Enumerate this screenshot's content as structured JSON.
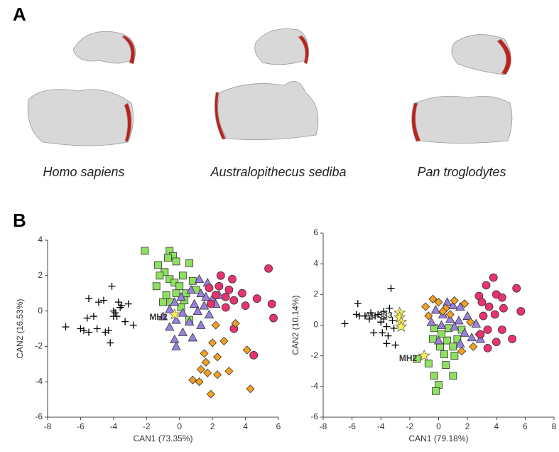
{
  "figure": {
    "panel_labels": [
      "A",
      "B"
    ],
    "species": [
      "Homo sapiens",
      "Australopithecus sediba",
      "Pan troglodytes"
    ]
  },
  "chart_data": [
    {
      "type": "scatter",
      "xlabel": "CAN1 (73.35%)",
      "ylabel": "CAN2 (16.53%)",
      "xlim": [
        -8,
        6
      ],
      "ylim": [
        -6,
        4
      ],
      "xticks": [
        -8,
        -6,
        -4,
        -2,
        0,
        2,
        4,
        6
      ],
      "yticks": [
        -6,
        -4,
        -2,
        0,
        2,
        4
      ],
      "series": [
        {
          "marker": "plus",
          "color": "#000000",
          "x": [
            -6.9,
            -6,
            -5.8,
            -5.6,
            -5.5,
            -5,
            -4.9,
            -4.6,
            -4.3,
            -4.1,
            -4,
            -3.9,
            -3.8,
            -3.6,
            -3.5,
            -3.3,
            -3.1,
            -2.8,
            -4.2,
            -4.5,
            -5.2,
            -3.7,
            -4,
            -5.5
          ],
          "y": [
            -0.9,
            -1,
            -1.1,
            -0.4,
            0.7,
            -1,
            0.5,
            0.6,
            -1.1,
            1.4,
            0,
            -0.1,
            -0.3,
            0.2,
            0.3,
            -0.6,
            0.4,
            -0.8,
            -1.8,
            -1.2,
            -0.3,
            0.5,
            -0.3,
            -1.2
          ]
        },
        {
          "marker": "square",
          "color": "#8fe060",
          "x": [
            -2.1,
            -0.6,
            -0.4,
            -0.7,
            -0.2,
            -1.3,
            -0.9,
            -1.2,
            0.6,
            0.2,
            0.8,
            -0.6,
            -0.3,
            -1.4,
            0,
            0.4,
            -0.8,
            -1,
            -0.5,
            0.1,
            0.6,
            -0.2,
            1,
            0.3
          ],
          "y": [
            3.4,
            3.4,
            3.1,
            3,
            2.8,
            2.6,
            2.2,
            2,
            2.7,
            2,
            1.7,
            1.8,
            1.6,
            1.4,
            1.4,
            1,
            0.9,
            0.5,
            0.5,
            0.2,
            -0.5,
            1,
            1.2,
            0.6
          ]
        },
        {
          "marker": "triangle",
          "color": "#9a80e0",
          "x": [
            1.2,
            1.7,
            0.7,
            1.3,
            2,
            -0.3,
            0.1,
            0.9,
            1.5,
            2.2,
            -0.6,
            0.2,
            1.1,
            1.8,
            -1,
            -0.2,
            0.6,
            1.3,
            -0.6,
            0.2,
            -0.3,
            -0.2,
            0.8,
            2.4,
            1.6
          ],
          "y": [
            1.8,
            1.6,
            1.2,
            1,
            0.7,
            0.5,
            0.8,
            0.4,
            0.3,
            0.4,
            0.1,
            -0.1,
            0,
            -0.2,
            -0.3,
            -0.5,
            -0.6,
            -0.8,
            -0.9,
            -1.2,
            -1.6,
            -2,
            -1.5,
            0.9,
            0.8
          ]
        },
        {
          "marker": "circle",
          "color": "#e8336e",
          "x": [
            2.5,
            3.2,
            1.8,
            2.2,
            2.8,
            3.3,
            3.8,
            4,
            4.7,
            5.4,
            5.6,
            5.7,
            2.8,
            1.9,
            4.5,
            3.3,
            2.4,
            3
          ],
          "y": [
            2,
            1.8,
            1.3,
            0.9,
            0.8,
            0.6,
            1,
            0.3,
            0.7,
            2.4,
            0.4,
            -0.4,
            0.2,
            0.4,
            -2.5,
            -1,
            1.4,
            1.2
          ]
        },
        {
          "marker": "diamond",
          "color": "#f4a020",
          "x": [
            2.2,
            2,
            2.7,
            3.4,
            2.3,
            1.5,
            4.1,
            3,
            1.3,
            1.7,
            2.3,
            0.8,
            1.2,
            1.9,
            4.3,
            1.6
          ],
          "y": [
            -0.8,
            -1.8,
            -1.7,
            -0.7,
            -2.6,
            -2.4,
            -2.2,
            -3.4,
            -3.3,
            -3.5,
            -3.6,
            -3.9,
            -4,
            -4.7,
            -4.4,
            -2.9
          ]
        },
        {
          "marker": "star",
          "color": "#fff44f",
          "label": "MH2",
          "x": [
            -0.3
          ],
          "y": [
            -0.2
          ]
        }
      ]
    },
    {
      "type": "scatter",
      "xlabel": "CAN1 (79.18%)",
      "ylabel": "CAN2 (10.14%)",
      "xlim": [
        -8,
        8
      ],
      "ylim": [
        -6,
        6
      ],
      "xticks": [
        -8,
        -6,
        -4,
        -2,
        0,
        2,
        4,
        6,
        8
      ],
      "yticks": [
        -6,
        -4,
        -2,
        0,
        2,
        4,
        6
      ],
      "series": [
        {
          "marker": "plus",
          "color": "#000000",
          "x": [
            -6.5,
            -5.7,
            -5.6,
            -5.5,
            -5.1,
            -4.8,
            -4.5,
            -4.4,
            -4.2,
            -4,
            -3.9,
            -3.8,
            -3.6,
            -3.5,
            -3.3,
            -3.2,
            -3.1,
            -3,
            -3.6,
            -4.7,
            -3.4,
            -3.8
          ],
          "y": [
            0.1,
            0.7,
            1.4,
            0.6,
            0.6,
            0.4,
            -0.5,
            0.6,
            0.7,
            0.2,
            -0.5,
            0.9,
            -0.1,
            -0.7,
            2.4,
            0.3,
            -0.2,
            -1.3,
            -1.2,
            0.8,
            1.1,
            0.4
          ]
        },
        {
          "marker": "square",
          "color": "#8fe060",
          "x": [
            -1.5,
            -0.7,
            -0.3,
            0,
            -0.2,
            0.1,
            0.4,
            0.6,
            1,
            1.1,
            0.5,
            1,
            0.2,
            -0.3,
            1.3,
            0.7,
            -0.4,
            1.6
          ],
          "y": [
            -2.2,
            -2.5,
            -3.3,
            -3.9,
            -4.3,
            -1.4,
            -1.9,
            -1,
            -1.4,
            -2,
            -2.6,
            -3.3,
            -0.6,
            -0.2,
            -0.9,
            -0.2,
            -0.9,
            -0.3
          ]
        },
        {
          "marker": "triangle",
          "color": "#9a80e0",
          "x": [
            0.6,
            1,
            1.5,
            -0.2,
            0.3,
            0.8,
            1.4,
            2,
            -0.5,
            0.2,
            1.1,
            1.8,
            2.3,
            2.9,
            0,
            1.5,
            2.6
          ],
          "y": [
            1.5,
            1.3,
            1.2,
            1,
            0.7,
            0.4,
            0.3,
            0.6,
            0.2,
            0,
            -0.1,
            -0.5,
            -0.8,
            -0.9,
            -1,
            -1.2,
            0.1
          ]
        },
        {
          "marker": "diamond",
          "color": "#f4a020",
          "x": [
            -0.9,
            -0.4,
            0,
            -0.7,
            0.5,
            1.1,
            1.8,
            0.8,
            2.2,
            1.6,
            2.4,
            2.8,
            0.3
          ],
          "y": [
            1.2,
            1.7,
            1.5,
            0.6,
            1.1,
            1.6,
            1.4,
            0.7,
            0.2,
            -1.7,
            -1.4,
            -0.6,
            0.9
          ]
        },
        {
          "marker": "circle",
          "color": "#e8336e",
          "x": [
            2.8,
            3,
            3.3,
            3.8,
            4,
            4.4,
            3.5,
            3.9,
            4.5,
            3.1,
            3.4,
            2.9,
            5.4,
            5.7,
            4.4,
            4,
            5.1,
            3.4
          ],
          "y": [
            1.9,
            1.5,
            2.6,
            3.1,
            2,
            1.8,
            1.2,
            0.7,
            1.1,
            0.6,
            -0.3,
            -0.6,
            2.4,
            0.9,
            -0.3,
            -1.1,
            -0.9,
            -1.5
          ]
        },
        {
          "marker": "star",
          "color": "#fff44f",
          "label": "AL 333",
          "x": [
            -2.7,
            -2.7,
            -2.6,
            -2.6
          ],
          "y": [
            0.8,
            0.5,
            0.2,
            -0.1
          ]
        },
        {
          "marker": "star",
          "color": "#fff44f",
          "label": "MH2",
          "x": [
            -1
          ],
          "y": [
            -2
          ]
        }
      ]
    }
  ]
}
